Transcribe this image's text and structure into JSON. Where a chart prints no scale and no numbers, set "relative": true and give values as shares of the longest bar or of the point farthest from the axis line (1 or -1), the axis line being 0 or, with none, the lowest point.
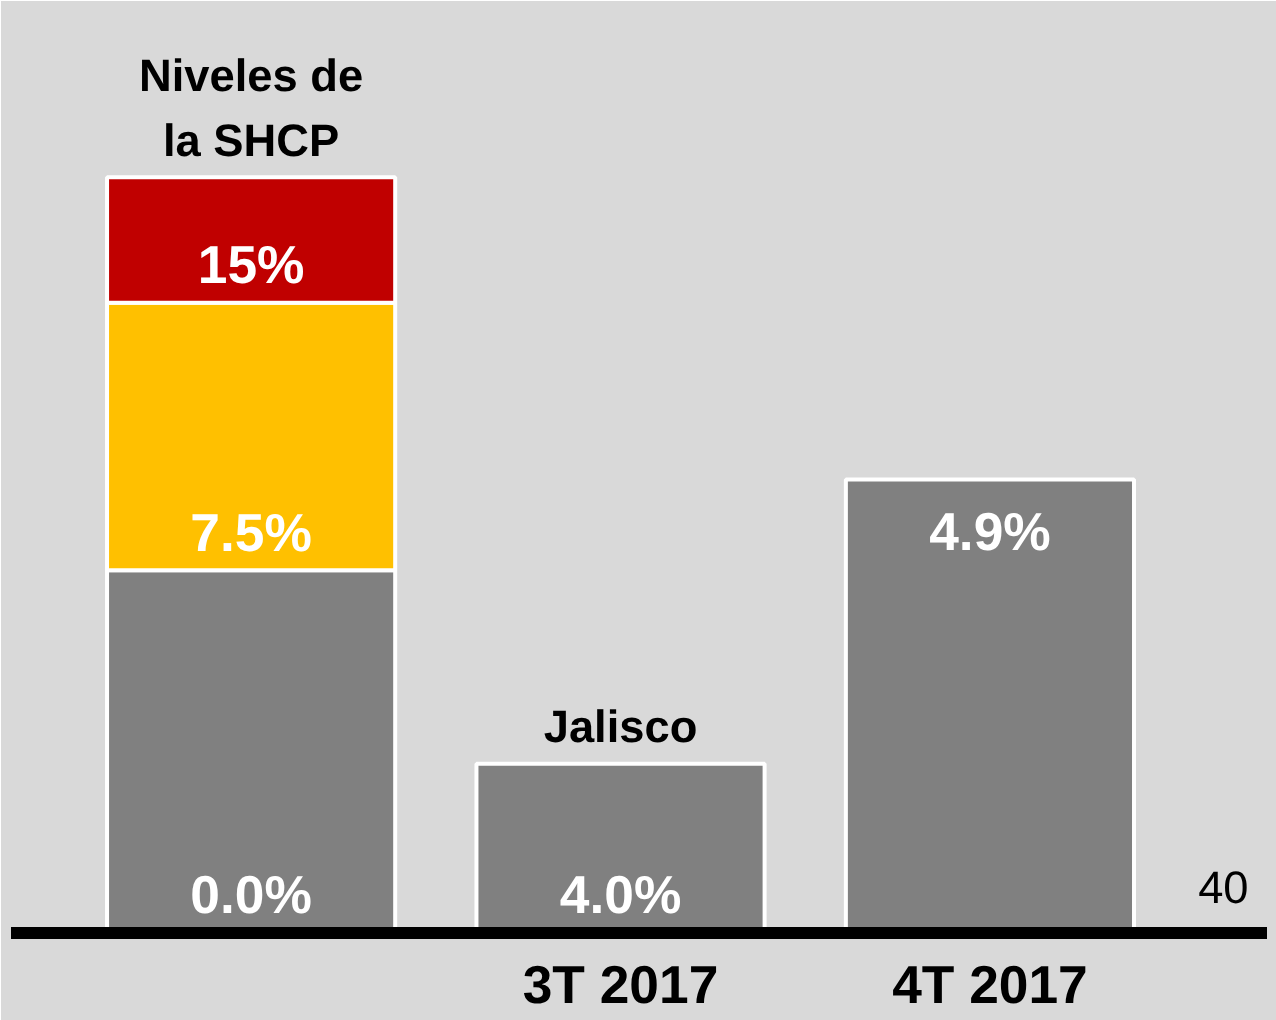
{
  "chart_data": {
    "type": "bar",
    "relative": true,
    "stacked": true,
    "categories": [
      null,
      "3T 2017",
      "4T 2017"
    ],
    "series": [
      {
        "color": "#808080",
        "values": [
          0.48,
          0.224,
          0.6
        ]
      },
      {
        "color": "#ffc000",
        "values": [
          0.354,
          null,
          null
        ]
      },
      {
        "color": "#c00000",
        "values": [
          0.166,
          null,
          null
        ]
      }
    ],
    "annotations": [
      "Niveles de\nla SHCP",
      "0.0%",
      "7.5%",
      "15%",
      "Jalisco",
      "4.0%",
      "4.9%",
      "40"
    ],
    "grid": false
  }
}
